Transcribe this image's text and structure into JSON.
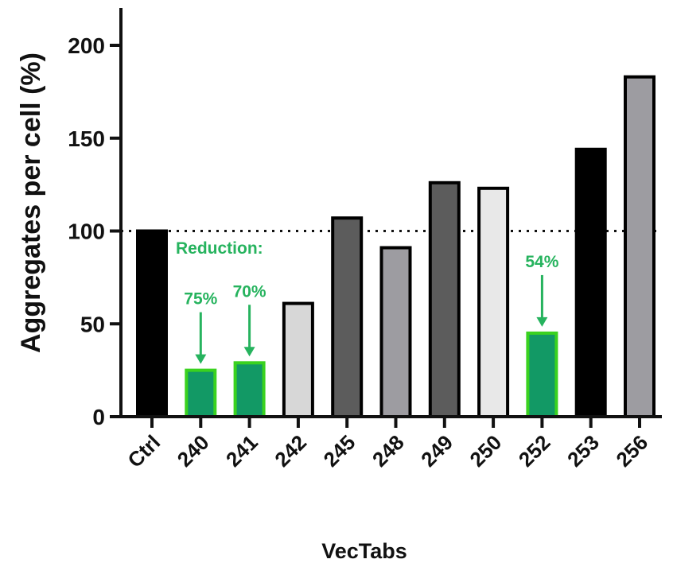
{
  "chart_data": {
    "type": "bar",
    "categories": [
      "Ctrl",
      "240",
      "241",
      "242",
      "245",
      "248",
      "249",
      "250",
      "252",
      "253",
      "256"
    ],
    "values": [
      100,
      25,
      29,
      61,
      107,
      91,
      126,
      123,
      45,
      144,
      183
    ],
    "bar_colors": [
      "#000000",
      "#129965",
      "#129965",
      "#d7d7d7",
      "#5c5c5c",
      "#9d9ca1",
      "#5c5c5c",
      "#e8e8e8",
      "#129965",
      "#000000",
      "#9d9ca1"
    ],
    "highlight_border_color": "#3ad21f",
    "reference_line": 100,
    "ylabel": "Aggregates per cell  (%)",
    "xlabel": "VecTabs",
    "ylim": [
      0,
      200
    ],
    "yticks": [
      0,
      50,
      100,
      150,
      200
    ],
    "annotations": [
      {
        "text": "Reduction:",
        "category": "240",
        "arrow": false
      },
      {
        "text": "75%",
        "category": "240",
        "arrow": true
      },
      {
        "text": "70%",
        "category": "241",
        "arrow": true
      },
      {
        "text": "54%",
        "category": "252",
        "arrow": true
      }
    ],
    "annotation_color": "#26b35e",
    "grid": false
  }
}
